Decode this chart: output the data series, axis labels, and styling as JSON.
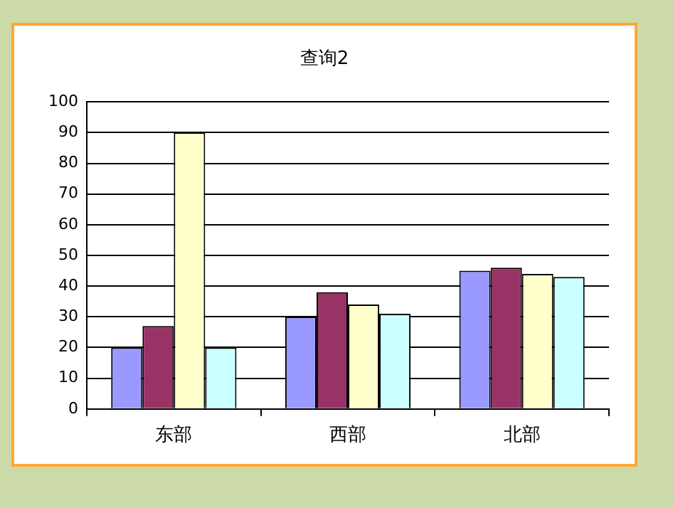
{
  "chart_data": {
    "type": "bar",
    "title": "查询2",
    "categories": [
      "东部",
      "西部",
      "北部"
    ],
    "series": [
      {
        "color": "#9999ff",
        "values": [
          20,
          30,
          45
        ]
      },
      {
        "color": "#993366",
        "values": [
          27,
          38,
          46
        ]
      },
      {
        "color": "#ffffcc",
        "values": [
          90,
          34,
          44
        ]
      },
      {
        "color": "#ccffff",
        "values": [
          20,
          31,
          43
        ]
      }
    ],
    "ylim": [
      0,
      100
    ],
    "yticks": [
      0,
      10,
      20,
      30,
      40,
      50,
      60,
      70,
      80,
      90,
      100
    ],
    "grid": "y",
    "legend": false
  }
}
